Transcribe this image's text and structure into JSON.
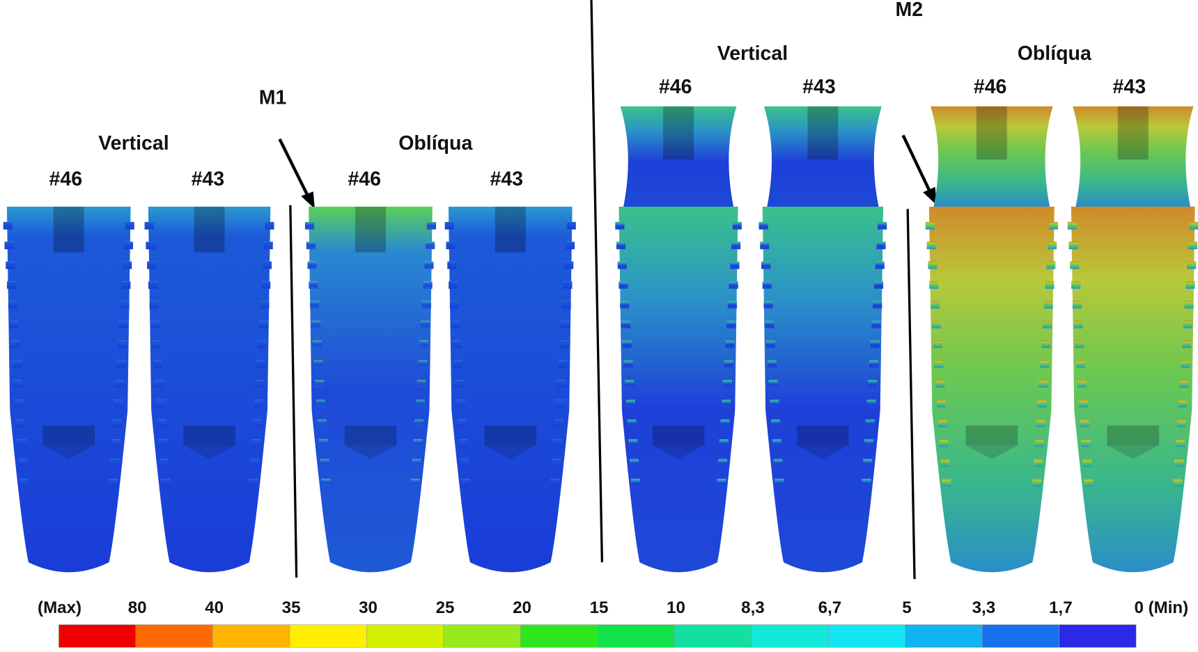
{
  "m1": {
    "label": "M1",
    "groups": [
      {
        "title": "Vertical",
        "items": [
          "#46",
          "#43"
        ]
      },
      {
        "title": "Oblíqua",
        "items": [
          "#46",
          "#43"
        ]
      }
    ]
  },
  "m2": {
    "label": "M2",
    "groups": [
      {
        "title": "Vertical",
        "items": [
          "#46",
          "#43"
        ]
      },
      {
        "title": "Oblíqua",
        "items": [
          "#46",
          "#43"
        ]
      }
    ]
  },
  "scale": {
    "labels": [
      "(Max)",
      "80",
      "40",
      "35",
      "30",
      "25",
      "20",
      "15",
      "10",
      "8,3",
      "6,7",
      "5",
      "3,3",
      "1,7",
      "0 (Min)"
    ],
    "colors": [
      "#ee0000",
      "#ff6a00",
      "#ffb400",
      "#ffee00",
      "#d4f000",
      "#96ea1e",
      "#2ee61e",
      "#12e24a",
      "#12e0a0",
      "#14e8d8",
      "#12e6f2",
      "#10b4f0",
      "#1670f0",
      "#2a2ae6"
    ]
  }
}
